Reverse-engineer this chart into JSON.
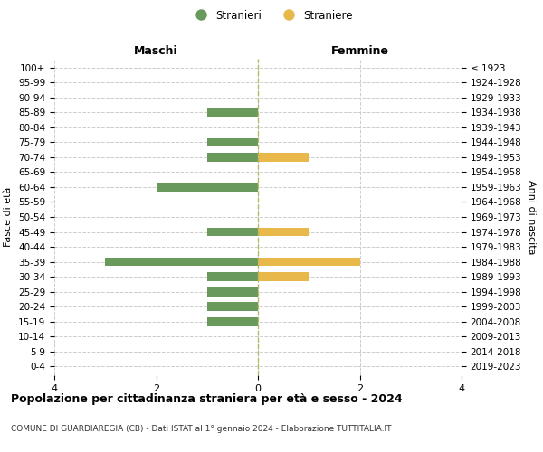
{
  "age_groups_bottom_to_top": [
    "0-4",
    "5-9",
    "10-14",
    "15-19",
    "20-24",
    "25-29",
    "30-34",
    "35-39",
    "40-44",
    "45-49",
    "50-54",
    "55-59",
    "60-64",
    "65-69",
    "70-74",
    "75-79",
    "80-84",
    "85-89",
    "90-94",
    "95-99",
    "100+"
  ],
  "birth_years_bottom_to_top": [
    "2019-2023",
    "2014-2018",
    "2009-2013",
    "2004-2008",
    "1999-2003",
    "1994-1998",
    "1989-1993",
    "1984-1988",
    "1979-1983",
    "1974-1978",
    "1969-1973",
    "1964-1968",
    "1959-1963",
    "1954-1958",
    "1949-1953",
    "1944-1948",
    "1939-1943",
    "1934-1938",
    "1929-1933",
    "1924-1928",
    "≤ 1923"
  ],
  "maschi_bottom_to_top": [
    0,
    0,
    0,
    1,
    1,
    1,
    1,
    3,
    0,
    1,
    0,
    0,
    2,
    0,
    1,
    1,
    0,
    1,
    0,
    0,
    0
  ],
  "femmine_bottom_to_top": [
    0,
    0,
    0,
    0,
    0,
    0,
    1,
    2,
    0,
    1,
    0,
    0,
    0,
    0,
    1,
    0,
    0,
    0,
    0,
    0,
    0
  ],
  "color_maschi": "#6a9a5b",
  "color_femmine": "#e8b84b",
  "title": "Popolazione per cittadinanza straniera per età e sesso - 2024",
  "subtitle": "COMUNE DI GUARDIAREGIA (CB) - Dati ISTAT al 1° gennaio 2024 - Elaborazione TUTTITALIA.IT",
  "xlabel_left": "Maschi",
  "xlabel_right": "Femmine",
  "ylabel_left": "Fasce di età",
  "ylabel_right": "Anni di nascita",
  "legend_maschi": "Stranieri",
  "legend_femmine": "Straniere",
  "xlim": 4,
  "background_color": "#ffffff",
  "grid_color": "#cccccc"
}
